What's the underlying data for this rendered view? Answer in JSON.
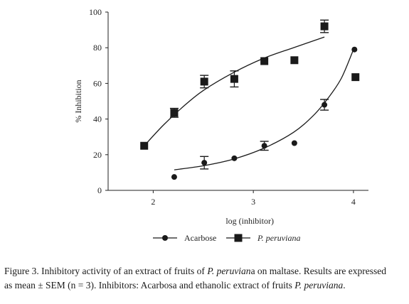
{
  "chart_data": {
    "type": "scatter",
    "xlabel": "log (inhibitor)",
    "ylabel": "% Inhibition",
    "xlim": [
      1.5,
      4.1
    ],
    "ylim": [
      0,
      100
    ],
    "xticks": [
      "2",
      "3",
      "4"
    ],
    "xtick_values": [
      2,
      3,
      4
    ],
    "yticks": [
      "0",
      "20",
      "40",
      "60",
      "80",
      "100"
    ],
    "ytick_values": [
      0,
      20,
      40,
      60,
      80,
      100
    ],
    "grid": false,
    "legend_position": "bottom",
    "series": [
      {
        "name": "Acarbose",
        "marker": "circle",
        "color": "#1a1a1a",
        "points": [
          {
            "x": 2.21,
            "y": 7.5,
            "err": 0
          },
          {
            "x": 2.51,
            "y": 15.5,
            "err": 3.5
          },
          {
            "x": 2.81,
            "y": 18,
            "err": 0
          },
          {
            "x": 3.11,
            "y": 25,
            "err": 2.5
          },
          {
            "x": 3.41,
            "y": 26.5,
            "err": 0
          },
          {
            "x": 3.71,
            "y": 48,
            "err": 3
          },
          {
            "x": 4.01,
            "y": 79,
            "err": 0
          }
        ],
        "fit": [
          {
            "x": 2.21,
            "y": 11.5
          },
          {
            "x": 2.5,
            "y": 13.8
          },
          {
            "x": 2.8,
            "y": 17.5
          },
          {
            "x": 3.1,
            "y": 23.5
          },
          {
            "x": 3.4,
            "y": 32.5
          },
          {
            "x": 3.6,
            "y": 42
          },
          {
            "x": 3.75,
            "y": 52
          },
          {
            "x": 3.88,
            "y": 63
          },
          {
            "x": 4.0,
            "y": 79
          }
        ]
      },
      {
        "name": "P. peruviana",
        "marker": "square",
        "color": "#1a1a1a",
        "points": [
          {
            "x": 1.91,
            "y": 25,
            "err": 0
          },
          {
            "x": 2.21,
            "y": 43.5,
            "err": 2.5
          },
          {
            "x": 2.51,
            "y": 61,
            "err": 3.5
          },
          {
            "x": 2.81,
            "y": 62.5,
            "err": 4.5
          },
          {
            "x": 3.11,
            "y": 72.5,
            "err": 0
          },
          {
            "x": 3.41,
            "y": 73,
            "err": 0
          },
          {
            "x": 3.71,
            "y": 92,
            "err": 3.5
          },
          {
            "x": 4.02,
            "y": 63.5,
            "err": 0
          }
        ],
        "fit": [
          {
            "x": 1.91,
            "y": 25
          },
          {
            "x": 2.1,
            "y": 36.5
          },
          {
            "x": 2.3,
            "y": 47
          },
          {
            "x": 2.5,
            "y": 56
          },
          {
            "x": 2.8,
            "y": 66
          },
          {
            "x": 3.1,
            "y": 74
          },
          {
            "x": 3.4,
            "y": 80
          },
          {
            "x": 3.71,
            "y": 86
          }
        ]
      }
    ]
  },
  "caption": {
    "line1_a": "Figure 3. Inhibitory activity of an extract of fruits of ",
    "line1_italic": "P. peruvian",
    "line1_b": "a on maltase. Results are expressed",
    "line2_a": "as mean ± SEM (n = 3). Inhibitors: Acarbosa and ethanolic extract of fruits ",
    "line2_italic": "P. peruviana",
    "line2_b": "."
  }
}
